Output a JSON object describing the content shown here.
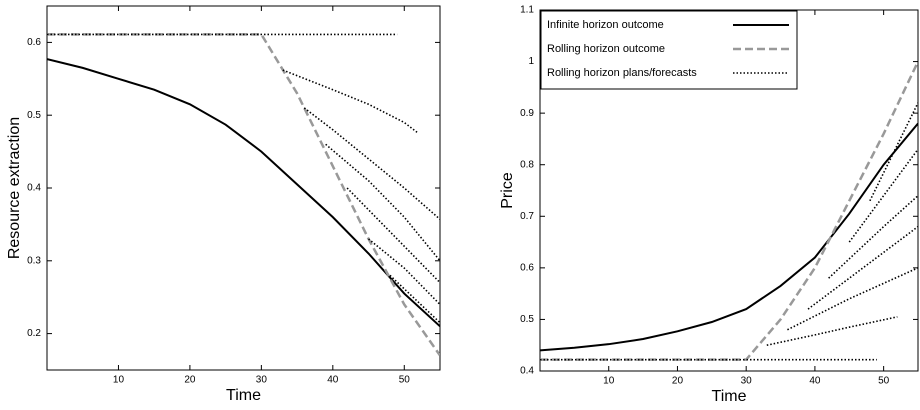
{
  "chart_data": [
    {
      "type": "line",
      "xlabel": "Time",
      "ylabel": "Resource extraction",
      "xlim": [
        0,
        55
      ],
      "ylim": [
        0.15,
        0.65
      ],
      "xticks": [
        10,
        20,
        30,
        40,
        50
      ],
      "yticks": [
        0.2,
        0.3,
        0.4,
        0.5,
        0.6
      ],
      "series": [
        {
          "color": "#000000",
          "style": "solid",
          "x": [
            0,
            5,
            10,
            15,
            20,
            25,
            30,
            35,
            40,
            45,
            50,
            55
          ],
          "values": [
            0.577,
            0.565,
            0.55,
            0.535,
            0.515,
            0.487,
            0.45,
            0.405,
            0.36,
            0.31,
            0.255,
            0.21
          ]
        },
        {
          "color": "#999999",
          "style": "dashed",
          "x": [
            0,
            30,
            35,
            40,
            45,
            50,
            55
          ],
          "values": [
            0.611,
            0.611,
            0.53,
            0.43,
            0.33,
            0.24,
            0.17
          ]
        },
        {
          "color": "#000000",
          "style": "dotted",
          "x": [
            0,
            49,
            null,
            33,
            40,
            45,
            50,
            52,
            null,
            36,
            40,
            45,
            50,
            55,
            null,
            39,
            45,
            50,
            55,
            null,
            42,
            48,
            55,
            null,
            45,
            50,
            55,
            null,
            48,
            55
          ],
          "values": [
            0.611,
            0.611,
            null,
            0.562,
            0.535,
            0.515,
            0.49,
            0.475,
            null,
            0.51,
            0.48,
            0.44,
            0.4,
            0.357,
            null,
            0.46,
            0.41,
            0.36,
            0.3,
            null,
            0.4,
            0.34,
            0.27,
            null,
            0.33,
            0.29,
            0.24,
            null,
            0.28,
            0.215
          ]
        }
      ]
    },
    {
      "type": "line",
      "xlabel": "Time",
      "ylabel": "Price",
      "xlim": [
        0,
        55
      ],
      "ylim": [
        0.4,
        1.1
      ],
      "xticks": [
        10,
        20,
        30,
        40,
        50
      ],
      "yticks": [
        0.4,
        0.5,
        0.6,
        0.7,
        0.8,
        0.9,
        1,
        1.1
      ],
      "legend": "upper left",
      "series": [
        {
          "name": "Infinite horizon outcome",
          "color": "#000000",
          "style": "solid",
          "x": [
            0,
            5,
            10,
            15,
            20,
            25,
            30,
            35,
            40,
            45,
            50,
            55
          ],
          "values": [
            0.44,
            0.445,
            0.452,
            0.462,
            0.477,
            0.495,
            0.52,
            0.565,
            0.62,
            0.705,
            0.8,
            0.88
          ]
        },
        {
          "name": "Rolling horizon outcome",
          "color": "#999999",
          "style": "dashed",
          "x": [
            0,
            30,
            35,
            40,
            45,
            50,
            55
          ],
          "values": [
            0.422,
            0.422,
            0.5,
            0.6,
            0.73,
            0.86,
            1.0
          ]
        },
        {
          "name": "Rolling horizon plans/forecasts",
          "color": "#000000",
          "style": "dotted",
          "x": [
            0,
            49,
            null,
            33,
            40,
            45,
            52,
            null,
            36,
            45,
            55,
            null,
            39,
            47,
            55,
            null,
            42,
            50,
            55,
            null,
            45,
            55,
            null,
            48,
            55
          ],
          "values": [
            0.422,
            0.422,
            null,
            0.45,
            0.47,
            0.485,
            0.505,
            null,
            0.48,
            0.54,
            0.6,
            null,
            0.52,
            0.6,
            0.68,
            null,
            0.58,
            0.68,
            0.74,
            null,
            0.65,
            0.83,
            null,
            0.73,
            0.92
          ]
        }
      ]
    }
  ]
}
